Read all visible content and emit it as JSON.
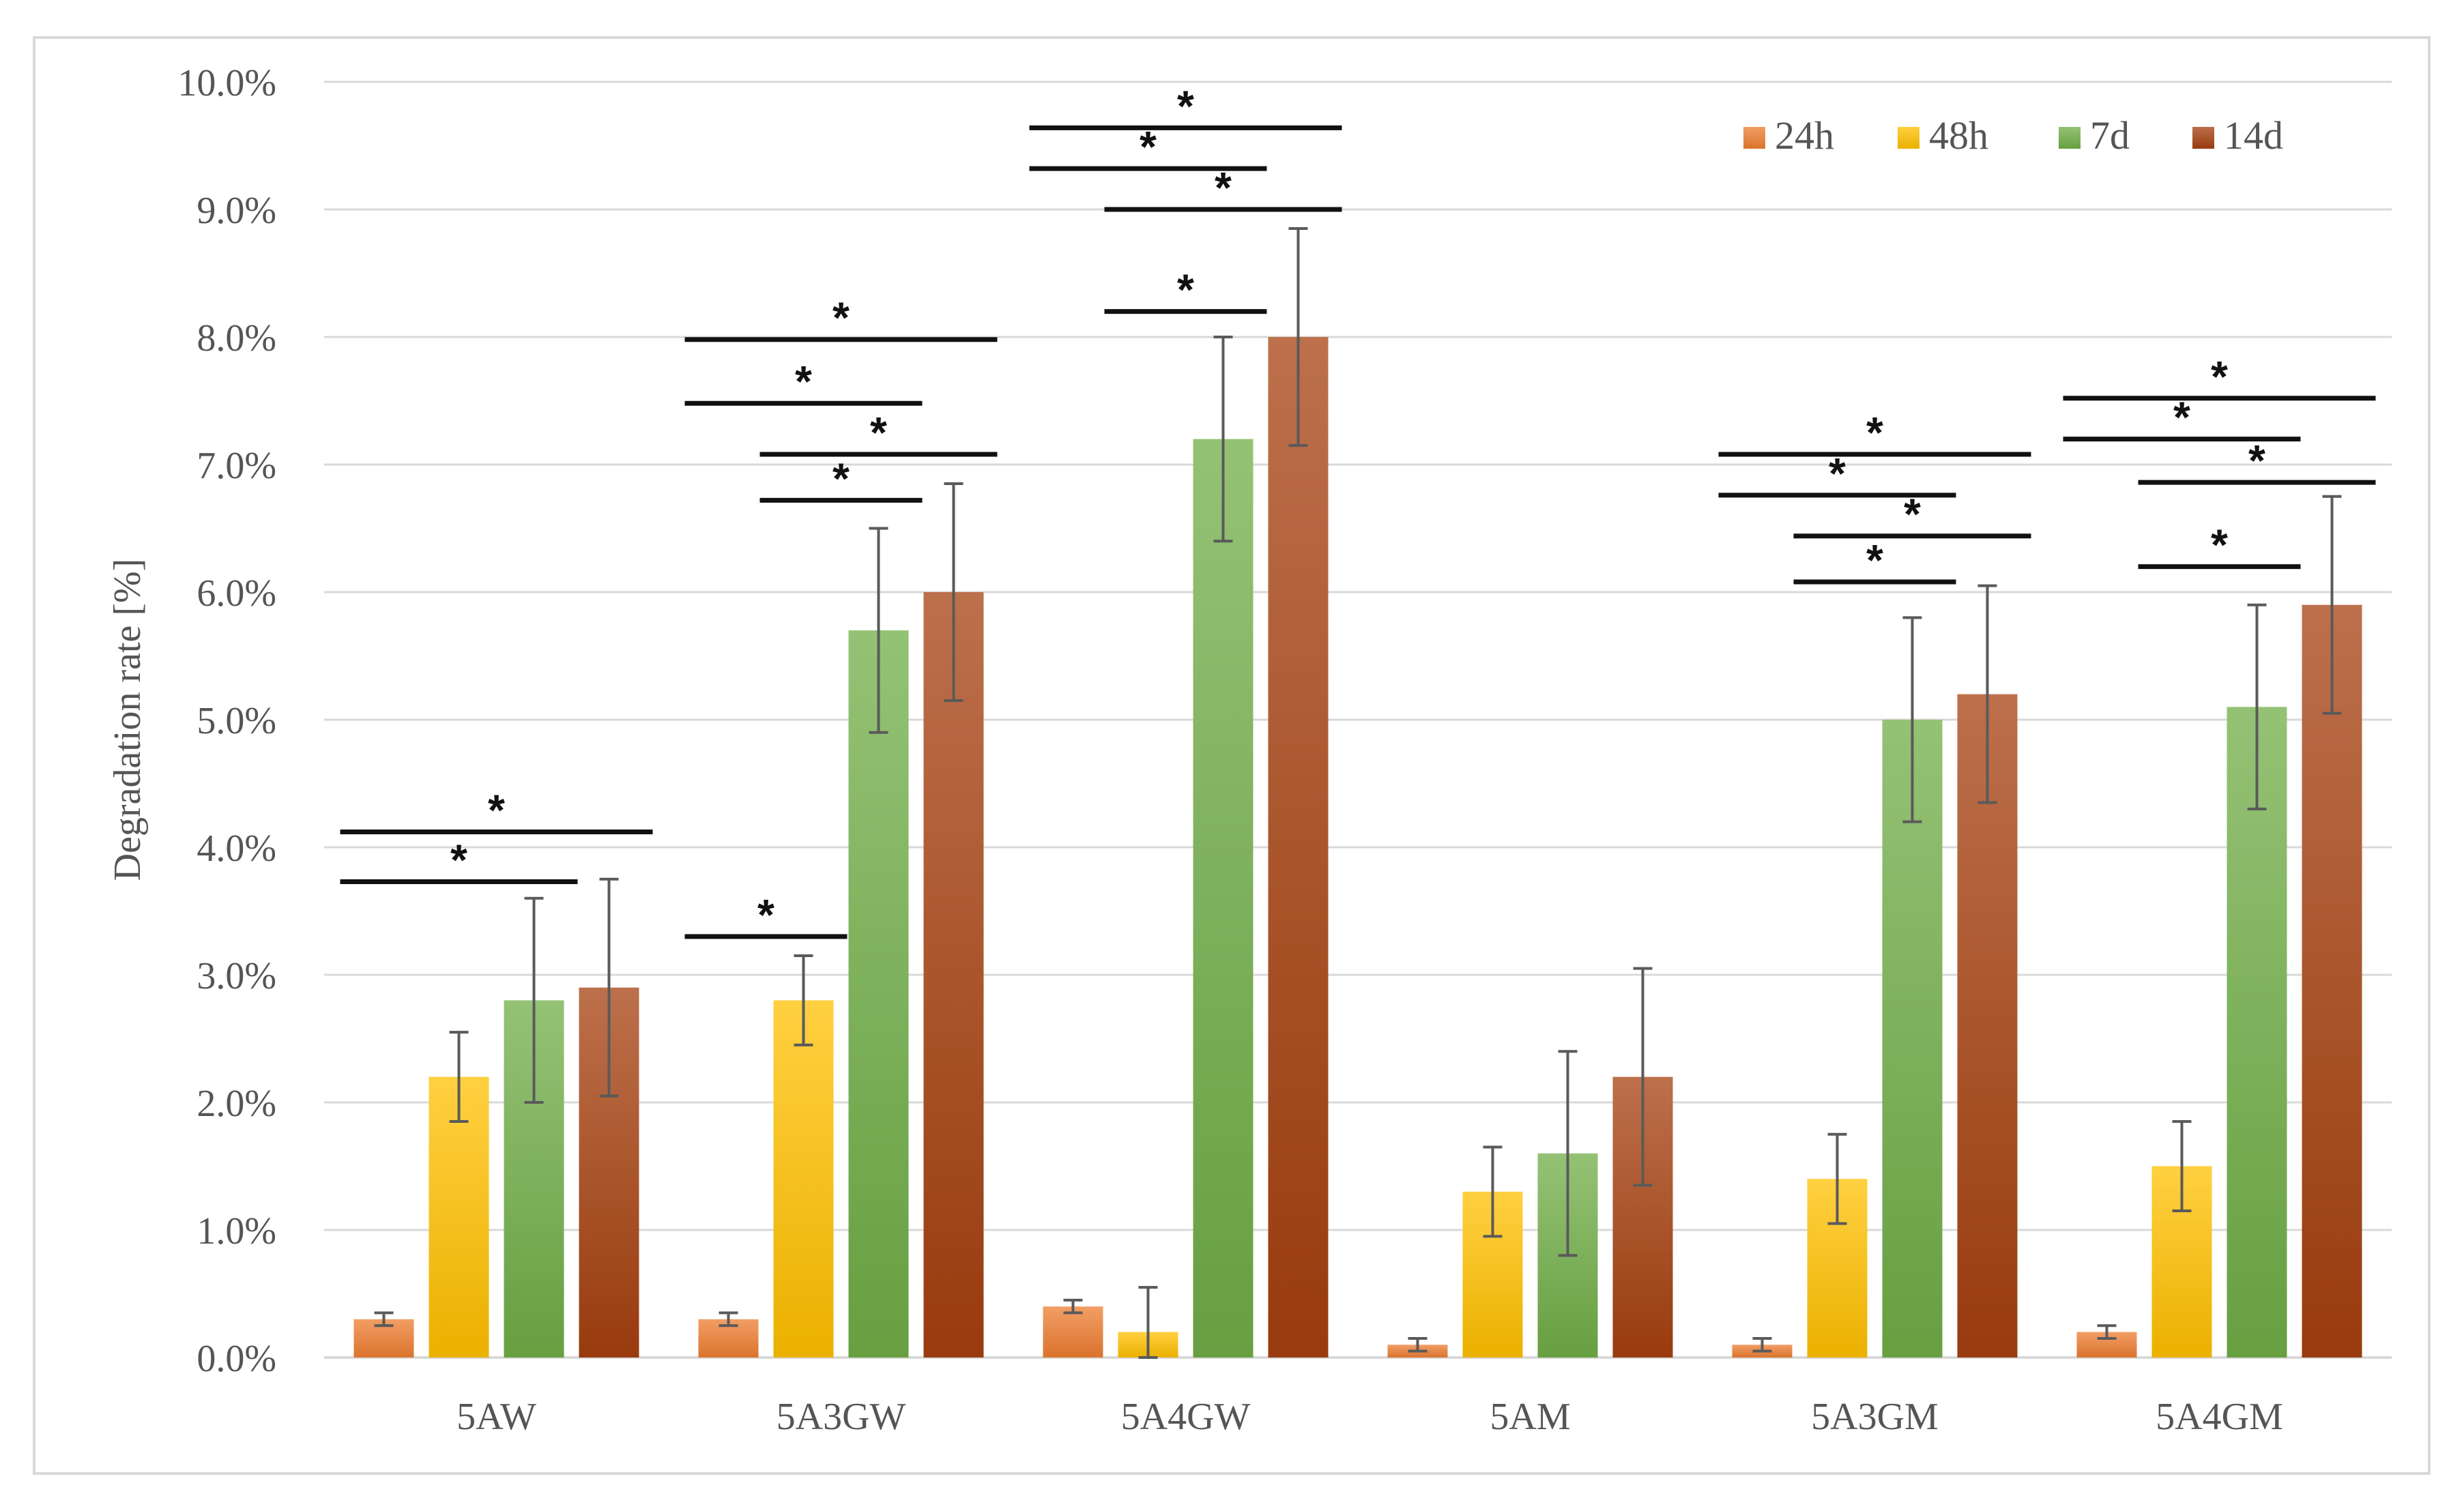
{
  "chart_data": {
    "type": "bar",
    "title": "",
    "xlabel": "",
    "ylabel": "Degradation rate [%]",
    "ylim": [
      0,
      10
    ],
    "y_ticks": [
      0,
      1,
      2,
      3,
      4,
      5,
      6,
      7,
      8,
      9,
      10
    ],
    "y_tick_labels": [
      "0.0%",
      "1.0%",
      "2.0%",
      "3.0%",
      "4.0%",
      "5.0%",
      "6.0%",
      "7.0%",
      "8.0%",
      "9.0%",
      "10.0%"
    ],
    "grid": true,
    "legend_position": "top-right",
    "categories": [
      "5AW",
      "5A3GW",
      "5A4GW",
      "5AM",
      "5A3GM",
      "5A4GM"
    ],
    "series": [
      {
        "name": "24h",
        "color": "#ED7D31",
        "values": [
          0.3,
          0.3,
          0.4,
          0.1,
          0.1,
          0.2
        ],
        "errors": [
          0.05,
          0.05,
          0.05,
          0.05,
          0.05,
          0.05
        ]
      },
      {
        "name": "48h",
        "color": "#FFC000",
        "values": [
          2.2,
          2.8,
          0.2,
          1.3,
          1.4,
          1.5
        ],
        "errors": [
          0.35,
          0.35,
          0.35,
          0.35,
          0.35,
          0.35
        ]
      },
      {
        "name": "7d",
        "color": "#70AD47",
        "values": [
          2.8,
          5.7,
          7.2,
          1.6,
          5.0,
          5.1
        ],
        "errors": [
          0.8,
          0.8,
          0.8,
          0.8,
          0.8,
          0.8
        ]
      },
      {
        "name": "14d",
        "color": "#A5400F",
        "values": [
          2.9,
          6.0,
          8.0,
          2.2,
          5.2,
          5.9
        ],
        "errors": [
          0.85,
          0.85,
          0.85,
          0.85,
          0.85,
          0.85
        ]
      }
    ],
    "significance": [
      {
        "category": 0,
        "from": 0,
        "to": 3,
        "y": 4.12,
        "label": "*"
      },
      {
        "category": 0,
        "from": 0,
        "to": 2,
        "y": 3.73,
        "label": "*"
      },
      {
        "category": 1,
        "from": 0,
        "to": 1,
        "y": 3.3,
        "label": "*"
      },
      {
        "category": 1,
        "from": 0,
        "to": 3,
        "y": 7.98,
        "label": "*"
      },
      {
        "category": 1,
        "from": 0,
        "to": 2,
        "y": 7.48,
        "label": "*"
      },
      {
        "category": 1,
        "from": 1,
        "to": 3,
        "y": 7.08,
        "label": "*"
      },
      {
        "category": 1,
        "from": 1,
        "to": 2,
        "y": 6.72,
        "label": "*"
      },
      {
        "category": 2,
        "from": 0,
        "to": 3,
        "y": 9.64,
        "label": "*"
      },
      {
        "category": 2,
        "from": 0,
        "to": 2,
        "y": 9.32,
        "label": "*"
      },
      {
        "category": 2,
        "from": 1,
        "to": 3,
        "y": 9.0,
        "label": "*"
      },
      {
        "category": 2,
        "from": 1,
        "to": 2,
        "y": 8.2,
        "label": "*"
      },
      {
        "category": 4,
        "from": 0,
        "to": 3,
        "y": 7.08,
        "label": "*"
      },
      {
        "category": 4,
        "from": 0,
        "to": 2,
        "y": 6.76,
        "label": "*"
      },
      {
        "category": 4,
        "from": 1,
        "to": 3,
        "y": 6.44,
        "label": "*"
      },
      {
        "category": 4,
        "from": 1,
        "to": 2,
        "y": 6.08,
        "label": "*"
      },
      {
        "category": 5,
        "from": 0,
        "to": 3,
        "y": 7.52,
        "label": "*"
      },
      {
        "category": 5,
        "from": 0,
        "to": 2,
        "y": 7.2,
        "label": "*"
      },
      {
        "category": 5,
        "from": 1,
        "to": 3,
        "y": 6.86,
        "label": "*"
      },
      {
        "category": 5,
        "from": 1,
        "to": 2,
        "y": 6.2,
        "label": "*"
      }
    ]
  }
}
